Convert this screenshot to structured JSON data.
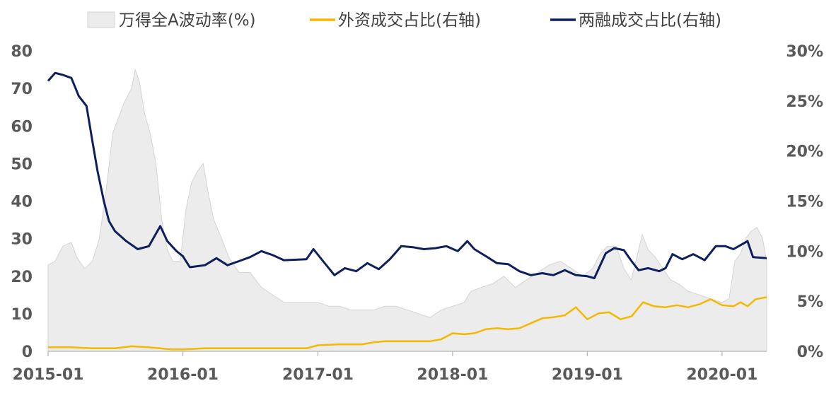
{
  "chart_data": {
    "type": "line",
    "legend": {
      "placement": "top"
    },
    "grid": false,
    "x_axis": {
      "range": [
        "2015-01",
        "2020-05"
      ],
      "tick_labels": [
        "2015-01",
        "2016-01",
        "2017-01",
        "2018-01",
        "2019-01",
        "2020-01"
      ]
    },
    "y_left": {
      "range": [
        0,
        80
      ],
      "tick_labels": [
        "0",
        "10",
        "20",
        "30",
        "40",
        "50",
        "60",
        "70",
        "80"
      ]
    },
    "y_right": {
      "range": [
        0,
        30
      ],
      "tick_labels": [
        "0%",
        "5%",
        "10%",
        "15%",
        "20%",
        "25%",
        "30%"
      ]
    },
    "series": [
      {
        "name": "万得全A波动率(%)",
        "kind": "area",
        "axis": "left",
        "color": "#ececec",
        "points": [
          [
            "2015-01-01",
            23
          ],
          [
            "2015-01-20",
            24
          ],
          [
            "2015-02-10",
            28
          ],
          [
            "2015-03-05",
            29
          ],
          [
            "2015-03-20",
            25
          ],
          [
            "2015-04-10",
            22
          ],
          [
            "2015-05-01",
            24
          ],
          [
            "2015-05-20",
            30
          ],
          [
            "2015-06-10",
            45
          ],
          [
            "2015-06-25",
            58
          ],
          [
            "2015-07-10",
            62
          ],
          [
            "2015-07-25",
            66
          ],
          [
            "2015-08-15",
            70
          ],
          [
            "2015-08-25",
            75
          ],
          [
            "2015-09-05",
            72
          ],
          [
            "2015-09-20",
            63
          ],
          [
            "2015-10-05",
            58
          ],
          [
            "2015-10-20",
            50
          ],
          [
            "2015-11-05",
            35
          ],
          [
            "2015-11-20",
            27
          ],
          [
            "2015-12-05",
            24
          ],
          [
            "2015-12-25",
            24
          ],
          [
            "2016-01-10",
            38
          ],
          [
            "2016-01-25",
            45
          ],
          [
            "2016-02-10",
            48
          ],
          [
            "2016-02-25",
            50
          ],
          [
            "2016-03-10",
            42
          ],
          [
            "2016-03-25",
            35
          ],
          [
            "2016-04-15",
            30
          ],
          [
            "2016-05-05",
            25
          ],
          [
            "2016-06-01",
            21
          ],
          [
            "2016-07-01",
            21
          ],
          [
            "2016-08-01",
            17
          ],
          [
            "2016-09-01",
            15
          ],
          [
            "2016-10-01",
            13
          ],
          [
            "2016-11-01",
            13
          ],
          [
            "2016-12-01",
            13
          ],
          [
            "2017-01-01",
            13
          ],
          [
            "2017-02-01",
            12
          ],
          [
            "2017-03-01",
            12
          ],
          [
            "2017-04-01",
            11
          ],
          [
            "2017-05-01",
            11
          ],
          [
            "2017-06-01",
            11
          ],
          [
            "2017-07-01",
            12
          ],
          [
            "2017-08-01",
            12
          ],
          [
            "2017-09-01",
            11
          ],
          [
            "2017-10-01",
            10
          ],
          [
            "2017-11-01",
            9
          ],
          [
            "2017-12-01",
            11
          ],
          [
            "2018-01-01",
            12
          ],
          [
            "2018-02-01",
            13
          ],
          [
            "2018-02-20",
            16
          ],
          [
            "2018-03-20",
            17
          ],
          [
            "2018-04-20",
            18
          ],
          [
            "2018-05-20",
            20
          ],
          [
            "2018-06-20",
            17
          ],
          [
            "2018-07-20",
            19
          ],
          [
            "2018-08-20",
            21
          ],
          [
            "2018-09-20",
            23
          ],
          [
            "2018-10-20",
            24
          ],
          [
            "2018-11-20",
            22
          ],
          [
            "2018-12-20",
            20
          ],
          [
            "2019-01-15",
            22
          ],
          [
            "2019-02-05",
            26
          ],
          [
            "2019-02-25",
            28
          ],
          [
            "2019-03-20",
            28
          ],
          [
            "2019-04-10",
            22
          ],
          [
            "2019-04-30",
            19
          ],
          [
            "2019-05-15",
            25
          ],
          [
            "2019-05-30",
            31
          ],
          [
            "2019-06-15",
            27
          ],
          [
            "2019-07-05",
            25
          ],
          [
            "2019-07-25",
            22
          ],
          [
            "2019-08-15",
            19
          ],
          [
            "2019-09-05",
            18
          ],
          [
            "2019-10-01",
            16
          ],
          [
            "2019-11-01",
            15
          ],
          [
            "2019-12-01",
            14
          ],
          [
            "2020-01-01",
            13
          ],
          [
            "2020-01-20",
            14
          ],
          [
            "2020-02-05",
            24
          ],
          [
            "2020-02-20",
            26
          ],
          [
            "2020-03-05",
            30
          ],
          [
            "2020-03-20",
            32
          ],
          [
            "2020-04-05",
            33
          ],
          [
            "2020-04-20",
            30
          ],
          [
            "2020-05-01",
            24
          ]
        ]
      },
      {
        "name": "外资成交占比(右轴)",
        "kind": "line",
        "axis": "right",
        "color": "#f5b800",
        "points": [
          [
            "2015-01-01",
            0.4
          ],
          [
            "2015-03-01",
            0.4
          ],
          [
            "2015-05-01",
            0.3
          ],
          [
            "2015-07-01",
            0.3
          ],
          [
            "2015-08-15",
            0.5
          ],
          [
            "2015-10-01",
            0.4
          ],
          [
            "2015-12-01",
            0.2
          ],
          [
            "2016-01-01",
            0.2
          ],
          [
            "2016-03-01",
            0.3
          ],
          [
            "2016-06-01",
            0.3
          ],
          [
            "2016-09-01",
            0.3
          ],
          [
            "2016-12-01",
            0.3
          ],
          [
            "2017-01-01",
            0.6
          ],
          [
            "2017-03-01",
            0.7
          ],
          [
            "2017-05-01",
            0.7
          ],
          [
            "2017-06-01",
            0.9
          ],
          [
            "2017-07-01",
            1.0
          ],
          [
            "2017-09-01",
            1.0
          ],
          [
            "2017-11-01",
            1.0
          ],
          [
            "2017-12-01",
            1.2
          ],
          [
            "2018-01-01",
            1.8
          ],
          [
            "2018-02-01",
            1.7
          ],
          [
            "2018-03-01",
            1.8
          ],
          [
            "2018-04-01",
            2.2
          ],
          [
            "2018-05-01",
            2.3
          ],
          [
            "2018-06-01",
            2.2
          ],
          [
            "2018-07-01",
            2.3
          ],
          [
            "2018-08-01",
            2.8
          ],
          [
            "2018-09-01",
            3.3
          ],
          [
            "2018-10-01",
            3.4
          ],
          [
            "2018-11-01",
            3.6
          ],
          [
            "2018-12-01",
            4.4
          ],
          [
            "2019-01-01",
            3.2
          ],
          [
            "2019-02-01",
            3.8
          ],
          [
            "2019-03-01",
            3.9
          ],
          [
            "2019-04-01",
            3.2
          ],
          [
            "2019-05-01",
            3.5
          ],
          [
            "2019-06-01",
            4.9
          ],
          [
            "2019-07-01",
            4.5
          ],
          [
            "2019-08-01",
            4.4
          ],
          [
            "2019-09-01",
            4.6
          ],
          [
            "2019-10-01",
            4.4
          ],
          [
            "2019-11-01",
            4.7
          ],
          [
            "2019-12-01",
            5.2
          ],
          [
            "2020-01-01",
            4.6
          ],
          [
            "2020-02-01",
            4.5
          ],
          [
            "2020-02-20",
            4.9
          ],
          [
            "2020-03-10",
            4.5
          ],
          [
            "2020-04-01",
            5.2
          ],
          [
            "2020-05-01",
            5.4
          ]
        ]
      },
      {
        "name": "两融成交占比(右轴)",
        "kind": "line",
        "axis": "right",
        "color": "#0d1f5c",
        "points": [
          [
            "2015-01-01",
            27.0
          ],
          [
            "2015-01-20",
            27.8
          ],
          [
            "2015-02-10",
            27.6
          ],
          [
            "2015-03-05",
            27.3
          ],
          [
            "2015-03-25",
            25.5
          ],
          [
            "2015-04-15",
            24.5
          ],
          [
            "2015-05-01",
            21.0
          ],
          [
            "2015-05-15",
            18.0
          ],
          [
            "2015-06-01",
            15.0
          ],
          [
            "2015-06-15",
            13.0
          ],
          [
            "2015-07-01",
            12.0
          ],
          [
            "2015-08-01",
            11.0
          ],
          [
            "2015-09-01",
            10.2
          ],
          [
            "2015-10-01",
            10.5
          ],
          [
            "2015-11-01",
            12.5
          ],
          [
            "2015-11-20",
            11.0
          ],
          [
            "2015-12-15",
            10.0
          ],
          [
            "2016-01-01",
            9.5
          ],
          [
            "2016-01-20",
            8.4
          ],
          [
            "2016-03-01",
            8.6
          ],
          [
            "2016-04-01",
            9.3
          ],
          [
            "2016-05-01",
            8.6
          ],
          [
            "2016-06-01",
            9.0
          ],
          [
            "2016-07-01",
            9.4
          ],
          [
            "2016-08-01",
            10.0
          ],
          [
            "2016-09-01",
            9.6
          ],
          [
            "2016-10-01",
            9.1
          ],
          [
            "2016-12-01",
            9.2
          ],
          [
            "2016-12-20",
            10.2
          ],
          [
            "2017-01-15",
            9.0
          ],
          [
            "2017-02-15",
            7.6
          ],
          [
            "2017-03-15",
            8.3
          ],
          [
            "2017-04-15",
            8.0
          ],
          [
            "2017-05-15",
            8.8
          ],
          [
            "2017-06-15",
            8.2
          ],
          [
            "2017-07-15",
            9.2
          ],
          [
            "2017-08-15",
            10.5
          ],
          [
            "2017-09-15",
            10.4
          ],
          [
            "2017-10-15",
            10.2
          ],
          [
            "2017-11-15",
            10.3
          ],
          [
            "2017-12-15",
            10.5
          ],
          [
            "2018-01-15",
            10.0
          ],
          [
            "2018-02-10",
            11.0
          ],
          [
            "2018-03-01",
            10.2
          ],
          [
            "2018-04-01",
            9.5
          ],
          [
            "2018-05-01",
            8.8
          ],
          [
            "2018-06-01",
            8.7
          ],
          [
            "2018-07-01",
            8.0
          ],
          [
            "2018-08-01",
            7.6
          ],
          [
            "2018-09-01",
            7.8
          ],
          [
            "2018-10-01",
            7.6
          ],
          [
            "2018-11-01",
            8.1
          ],
          [
            "2018-12-01",
            7.6
          ],
          [
            "2019-01-01",
            7.5
          ],
          [
            "2019-01-20",
            7.3
          ],
          [
            "2019-02-20",
            9.8
          ],
          [
            "2019-03-15",
            10.3
          ],
          [
            "2019-04-10",
            10.1
          ],
          [
            "2019-05-01",
            9.0
          ],
          [
            "2019-05-20",
            8.1
          ],
          [
            "2019-06-15",
            8.3
          ],
          [
            "2019-07-15",
            8.0
          ],
          [
            "2019-08-01",
            8.3
          ],
          [
            "2019-08-20",
            9.7
          ],
          [
            "2019-09-15",
            9.2
          ],
          [
            "2019-10-15",
            9.7
          ],
          [
            "2019-11-15",
            9.1
          ],
          [
            "2019-12-15",
            10.5
          ],
          [
            "2020-01-10",
            10.5
          ],
          [
            "2020-02-01",
            10.2
          ],
          [
            "2020-02-20",
            10.6
          ],
          [
            "2020-03-10",
            11.0
          ],
          [
            "2020-03-25",
            9.4
          ],
          [
            "2020-05-01",
            9.3
          ]
        ]
      }
    ]
  }
}
